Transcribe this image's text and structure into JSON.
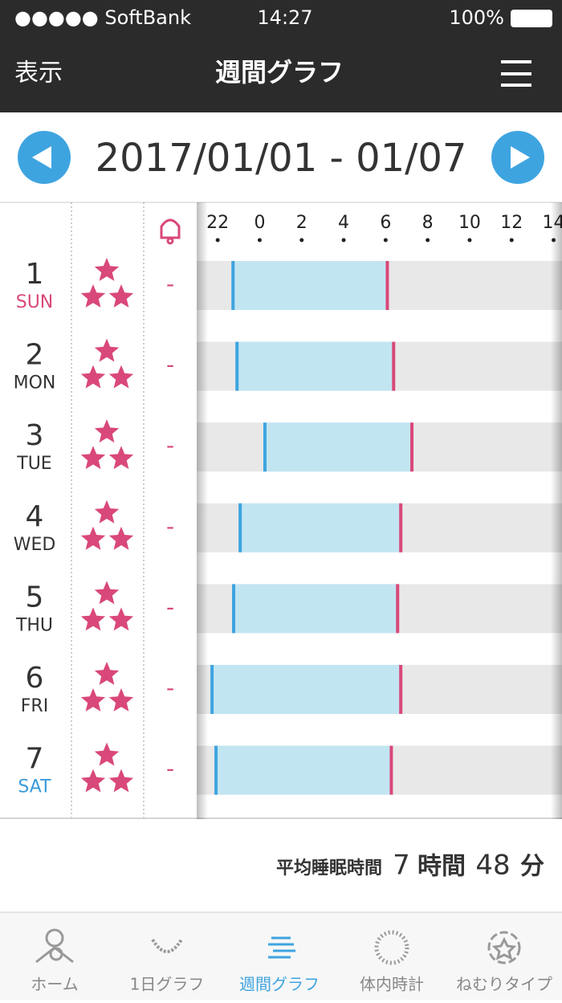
{
  "status": {
    "carrier": "●●●●● SoftBank",
    "time": "14:27",
    "battery": "100%"
  },
  "nav": {
    "left": "表示",
    "title": "週間グラフ"
  },
  "date_range": "2017/01/01 - 01/07",
  "graph": {
    "xlim": [
      21,
      38.4
    ],
    "xticks": [
      22,
      {
        "value": 24,
        "label": "0"
      },
      {
        "value": 26,
        "label": "2"
      },
      {
        "value": 28,
        "label": "4"
      },
      {
        "value": 30,
        "label": "6"
      },
      {
        "value": 32,
        "label": "8"
      },
      {
        "value": 34,
        "label": "10"
      },
      {
        "value": 36,
        "label": "12"
      },
      {
        "value": 38,
        "label": "14"
      }
    ],
    "rows": [
      {
        "day": "1",
        "weekday": "SUN",
        "stars": 3,
        "alarm": "-",
        "start": 22.73,
        "end": 30.08
      },
      {
        "day": "2",
        "weekday": "MON",
        "stars": 3,
        "alarm": "-",
        "start": 22.92,
        "end": 30.38
      },
      {
        "day": "3",
        "weekday": "TUE",
        "stars": 3,
        "alarm": "-",
        "start": 24.25,
        "end": 31.25
      },
      {
        "day": "4",
        "weekday": "WED",
        "stars": 3,
        "alarm": "-",
        "start": 23.07,
        "end": 30.72
      },
      {
        "day": "5",
        "weekday": "THU",
        "stars": 3,
        "alarm": "-",
        "start": 22.76,
        "end": 30.57
      },
      {
        "day": "6",
        "weekday": "FRI",
        "stars": 3,
        "alarm": "-",
        "start": 21.73,
        "end": 30.72
      },
      {
        "day": "7",
        "weekday": "SAT",
        "stars": 3,
        "alarm": "-",
        "start": 21.92,
        "end": 30.27
      }
    ]
  },
  "summary": {
    "label": "平均睡眠時間",
    "hours": 7,
    "hours_unit": "時間",
    "minutes": 48,
    "minutes_unit": "分"
  },
  "tabs": [
    "ホーム",
    "1日グラフ",
    "週間グラフ",
    "体内時計",
    "ねむりタイプ"
  ]
}
